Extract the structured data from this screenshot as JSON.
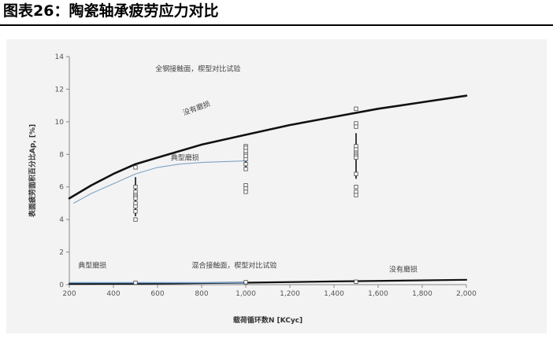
{
  "figure": {
    "title": "图表26：陶瓷轴承疲劳应力对比"
  },
  "chart_data": {
    "type": "line",
    "xlabel": "载荷循环数N [KCyc]",
    "ylabel": "表面疲劳面积百分比Ap, [%]",
    "xlim": [
      200,
      2000
    ],
    "ylim": [
      0,
      14
    ],
    "x_ticks": [
      200,
      400,
      600,
      800,
      1000,
      1200,
      1400,
      1600,
      1800,
      2000
    ],
    "x_tick_labels": [
      "200",
      "400",
      "600",
      "800",
      "1,000",
      "1,200",
      "1,400",
      "1,600",
      "1,800",
      "2,000"
    ],
    "y_ticks": [
      0,
      2,
      4,
      6,
      8,
      10,
      12,
      14
    ],
    "y_tick_labels": [
      "0",
      "2",
      "4",
      "6",
      "8",
      "10",
      "12",
      "14"
    ],
    "grid": false,
    "series": [
      {
        "key": "steel_upper",
        "color": "#111111",
        "x": [
          200,
          300,
          400,
          500,
          600,
          800,
          1000,
          1200,
          1400,
          1600,
          1800,
          2000
        ],
        "y": [
          5.3,
          6.1,
          6.8,
          7.4,
          7.8,
          8.6,
          9.2,
          9.8,
          10.3,
          10.8,
          11.2,
          11.6
        ]
      },
      {
        "key": "typical_wear_upper",
        "color": "#7fa3c4",
        "x": [
          220,
          300,
          400,
          500,
          600,
          700,
          800,
          900,
          1000
        ],
        "y": [
          5.0,
          5.6,
          6.2,
          6.8,
          7.2,
          7.4,
          7.5,
          7.55,
          7.6
        ]
      },
      {
        "key": "hybrid_lower",
        "color": "#111111",
        "x": [
          200,
          600,
          1000,
          1400,
          2000
        ],
        "y": [
          0.05,
          0.07,
          0.12,
          0.2,
          0.3
        ]
      },
      {
        "key": "typical_wear_lower",
        "color": "#6a9ccf",
        "x": [
          200,
          500,
          1000
        ],
        "y": [
          0.12,
          0.12,
          0.12
        ]
      }
    ],
    "scatter_groups": [
      {
        "x": 500,
        "points": [
          7.2,
          6.0,
          5.7,
          5.5,
          5.4,
          5.3,
          5.0,
          4.8,
          4.5,
          4.0
        ],
        "bar": [
          4.2,
          6.6
        ]
      },
      {
        "x": 1000,
        "points": [
          8.5,
          8.4,
          8.2,
          8.0,
          7.9,
          7.7,
          7.4,
          7.1,
          6.1,
          5.9,
          5.7
        ],
        "bar": [
          7.0,
          8.5
        ]
      },
      {
        "x": 1500,
        "points": [
          10.8,
          9.9,
          9.7,
          8.5,
          8.3,
          8.1,
          8.0,
          7.9,
          7.8,
          6.8,
          6.0,
          5.7,
          5.5
        ],
        "bar": [
          6.5,
          9.3
        ]
      },
      {
        "x": 500,
        "points": [
          0.12
        ],
        "bar": [
          0.05,
          0.2
        ]
      },
      {
        "x": 1000,
        "points": [
          0.15
        ],
        "bar": [
          0.05,
          0.25
        ]
      },
      {
        "x": 1500,
        "points": [
          0.18
        ],
        "bar": [
          0.1,
          0.25
        ]
      }
    ],
    "annotations": [
      {
        "text": "全钢接触面，楔型对比试验",
        "x": 590,
        "y": 13.1
      },
      {
        "text": "没有磨损",
        "x": 720,
        "y": 10.4,
        "rotate": -20
      },
      {
        "text": "典型磨损",
        "x": 660,
        "y": 7.65
      },
      {
        "text": "典型磨损",
        "x": 240,
        "y": 1.05
      },
      {
        "text": "混合接触面，楔型对比试验",
        "x": 755,
        "y": 1.05
      },
      {
        "text": "没有磨损",
        "x": 1650,
        "y": 0.8
      }
    ]
  }
}
